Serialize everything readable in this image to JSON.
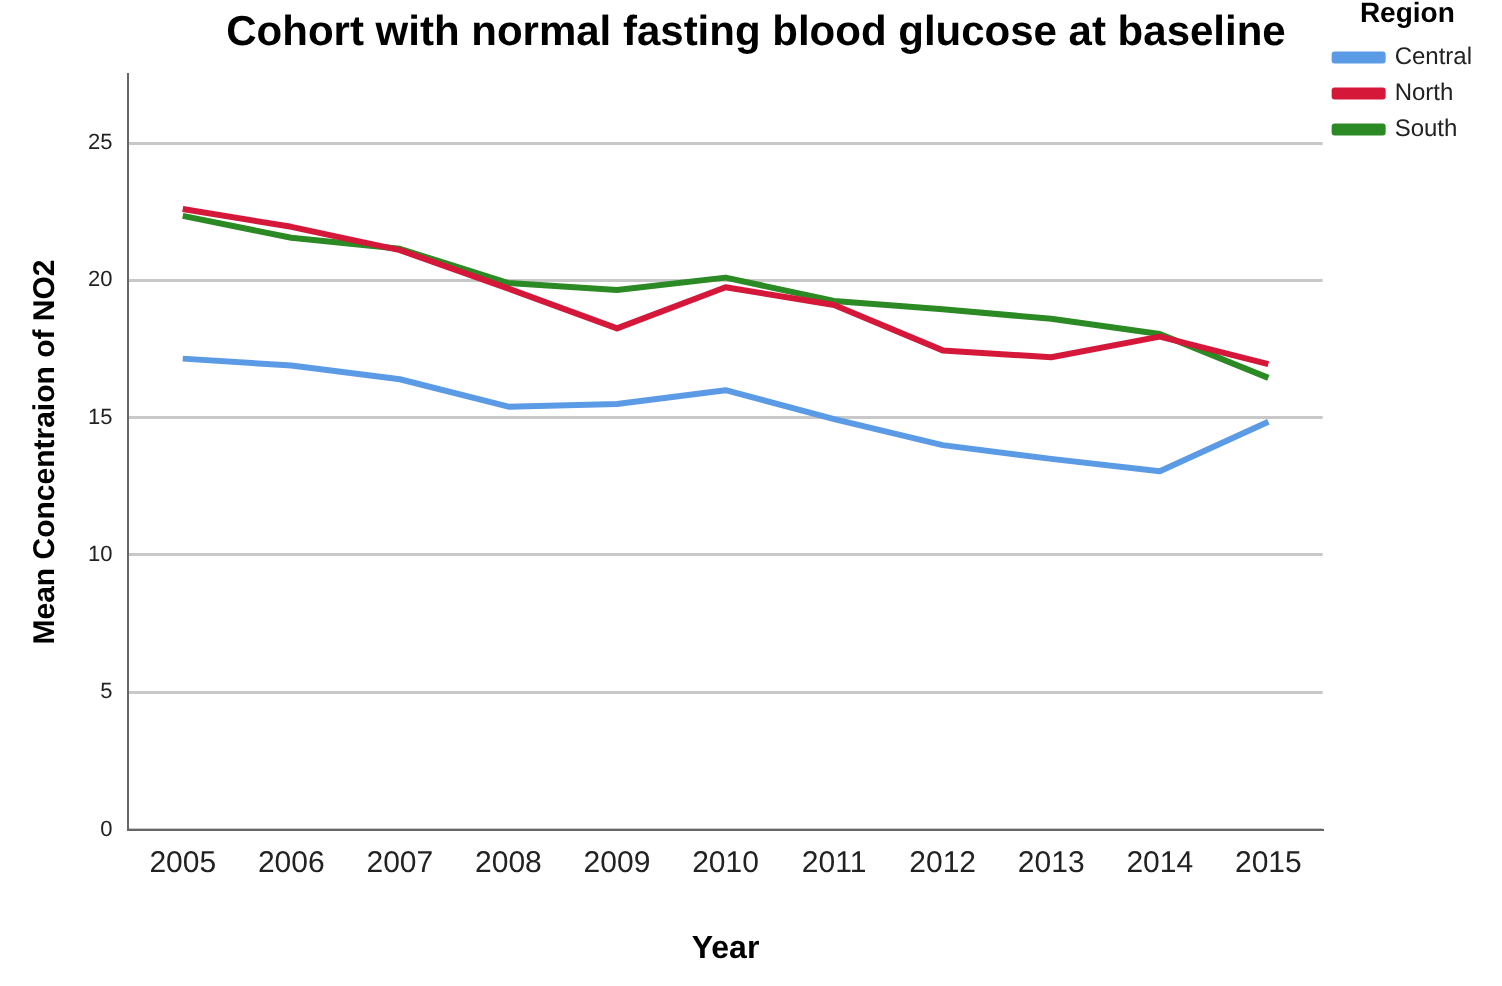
{
  "chart_data": {
    "type": "line",
    "title": "Cohort with normal fasting blood glucose at baseline",
    "xlabel": "Year",
    "ylabel": "Mean Concentraion of NO2",
    "legend_title": "Region",
    "categories": [
      "2005",
      "2006",
      "2007",
      "2008",
      "2009",
      "2010",
      "2011",
      "2012",
      "2013",
      "2014",
      "2015"
    ],
    "series": [
      {
        "name": "Central",
        "color": "#5b9be6",
        "values": [
          17.15,
          16.9,
          16.4,
          15.4,
          15.5,
          16.0,
          14.95,
          14.0,
          13.5,
          13.05,
          14.85
        ]
      },
      {
        "name": "North",
        "color": "#d5173a",
        "values": [
          22.6,
          21.95,
          21.1,
          19.7,
          18.25,
          19.75,
          19.1,
          17.45,
          17.2,
          17.95,
          16.95
        ]
      },
      {
        "name": "South",
        "color": "#2b8a24",
        "values": [
          22.35,
          21.55,
          21.15,
          19.9,
          19.65,
          20.1,
          19.25,
          18.95,
          18.6,
          18.05,
          16.45
        ]
      }
    ],
    "ylim": [
      0,
      27.5
    ],
    "yticks": [
      0,
      5,
      10,
      15,
      20,
      25
    ],
    "grid": "y",
    "legend": "top right",
    "marker": "none",
    "line_style": "solid"
  }
}
